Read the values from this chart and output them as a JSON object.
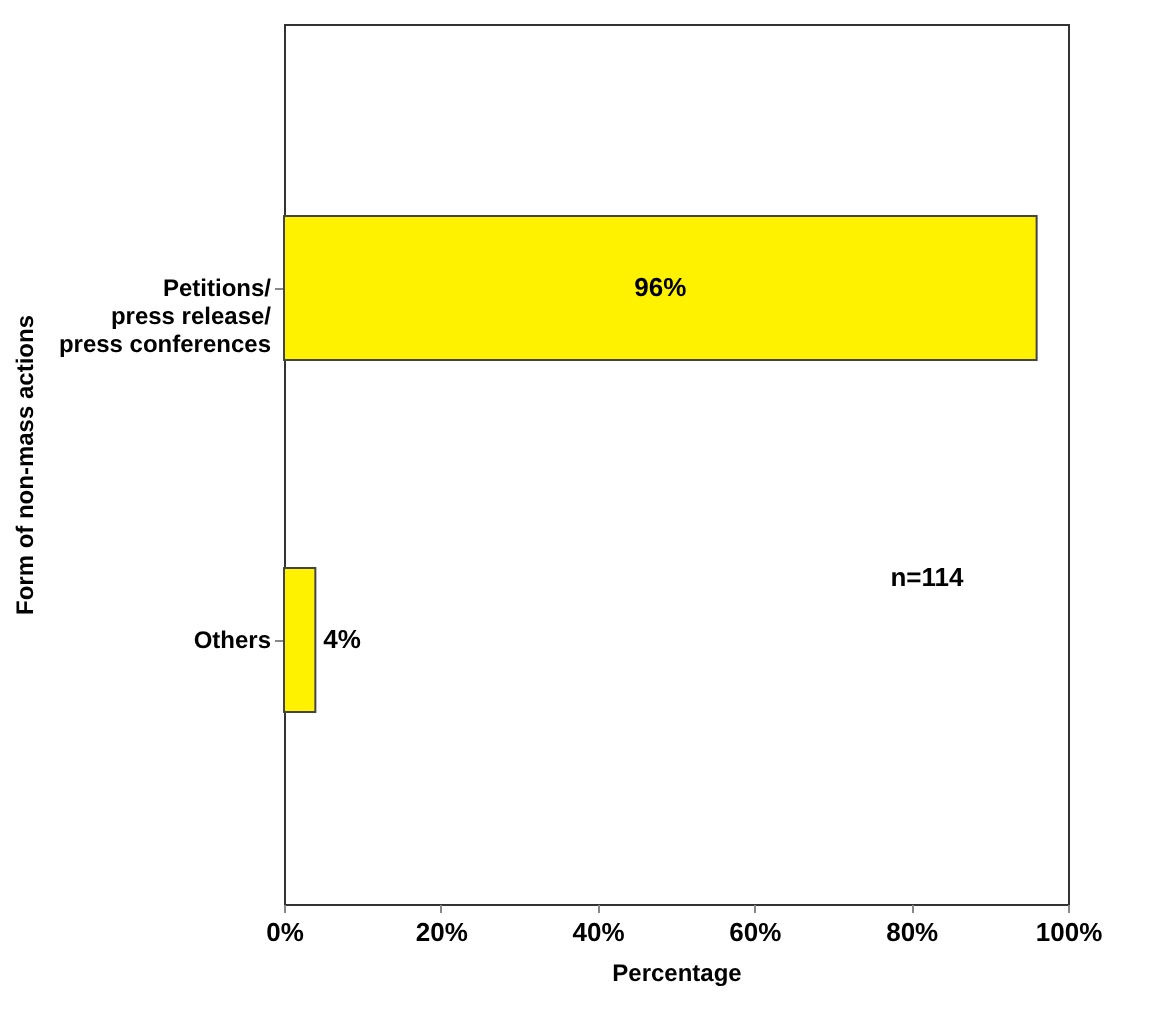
{
  "chart_data": {
    "type": "bar",
    "orientation": "horizontal",
    "xlabel": "Percentage",
    "ylabel": "Form of non-mass actions",
    "categories": [
      "Petitions/\npress release/\npress conferences",
      "Others"
    ],
    "values": [
      96,
      4
    ],
    "color": "#fff200",
    "value_labels": [
      "96%",
      "4%"
    ],
    "xlim": [
      0,
      100
    ],
    "xticks": [
      {
        "value": 0,
        "label": "0%"
      },
      {
        "value": 20,
        "label": "20%"
      },
      {
        "value": 40,
        "label": "40%"
      },
      {
        "value": 60,
        "label": "60%"
      },
      {
        "value": 80,
        "label": "80%"
      },
      {
        "value": 100,
        "label": "100%"
      }
    ],
    "annotations": [
      "n=114"
    ],
    "grid": false
  }
}
